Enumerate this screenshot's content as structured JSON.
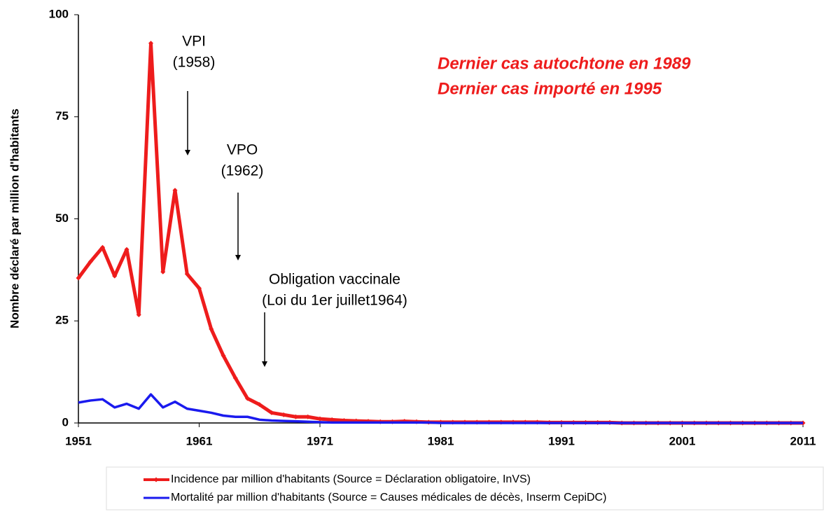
{
  "chart_data": {
    "type": "line",
    "ylabel": "Nombre déclaré par million d'habitants",
    "x": [
      1951,
      1952,
      1953,
      1954,
      1955,
      1956,
      1957,
      1958,
      1959,
      1960,
      1961,
      1962,
      1963,
      1964,
      1965,
      1966,
      1967,
      1968,
      1969,
      1970,
      1971,
      1972,
      1973,
      1974,
      1975,
      1976,
      1977,
      1978,
      1979,
      1980,
      1981,
      1982,
      1983,
      1984,
      1985,
      1986,
      1987,
      1988,
      1989,
      1990,
      1991,
      1992,
      1993,
      1994,
      1995,
      1996,
      1997,
      1998,
      1999,
      2000,
      2001,
      2002,
      2003,
      2004,
      2005,
      2006,
      2007,
      2008,
      2009,
      2010,
      2011
    ],
    "series": [
      {
        "name": "Incidence par million d'habitants (Source = Déclaration obligatoire, InVS)",
        "color": "#ee1c1c",
        "markers": true,
        "values": [
          35.5,
          39.5,
          43,
          36,
          42.5,
          26.5,
          93,
          37,
          57,
          36.5,
          33,
          23,
          16.5,
          11,
          6,
          4.5,
          2.5,
          2,
          1.5,
          1.5,
          1,
          0.8,
          0.6,
          0.5,
          0.4,
          0.3,
          0.3,
          0.4,
          0.3,
          0.2,
          0.2,
          0.2,
          0.2,
          0.2,
          0.2,
          0.2,
          0.2,
          0.2,
          0.2,
          0.1,
          0.1,
          0.1,
          0.1,
          0.1,
          0.1,
          0,
          0,
          0,
          0,
          0,
          0,
          0,
          0,
          0,
          0,
          0,
          0,
          0,
          0,
          0,
          0
        ]
      },
      {
        "name": "Mortalité par million d'habitants  (Source = Causes médicales de décès, Inserm CepiDC)",
        "color": "#1a1aee",
        "markers": false,
        "values": [
          5,
          5.5,
          5.8,
          3.8,
          4.7,
          3.5,
          7,
          3.8,
          5.2,
          3.5,
          3,
          2.5,
          1.8,
          1.5,
          1.5,
          0.8,
          0.6,
          0.5,
          0.4,
          0.3,
          0.2,
          0.1,
          0.1,
          0.1,
          0.1,
          0.1,
          0.1,
          0.1,
          0.1,
          0.1,
          0,
          0,
          0,
          0,
          0,
          0,
          0,
          0,
          0,
          0,
          0,
          0,
          0,
          0,
          0,
          0,
          0,
          0,
          0,
          0,
          0,
          0,
          0,
          0,
          0,
          0,
          0,
          0,
          0,
          0,
          0
        ]
      }
    ],
    "xlim": [
      1951,
      2011
    ],
    "xticks": [
      1951,
      1961,
      1971,
      1981,
      1991,
      2001,
      2011
    ],
    "ylim": [
      0,
      100
    ],
    "yticks": [
      0,
      25,
      50,
      75,
      100
    ],
    "annotations": [
      [
        "VPI",
        "(1958)"
      ],
      [
        "VPO",
        "(1962)"
      ],
      [
        "Obligation vaccinale",
        "(Loi du 1er juillet1964)"
      ]
    ],
    "highlight": [
      "Dernier cas autochtone  en 1989",
      "Dernier cas importé  en 1995"
    ],
    "legend": "bottom"
  }
}
